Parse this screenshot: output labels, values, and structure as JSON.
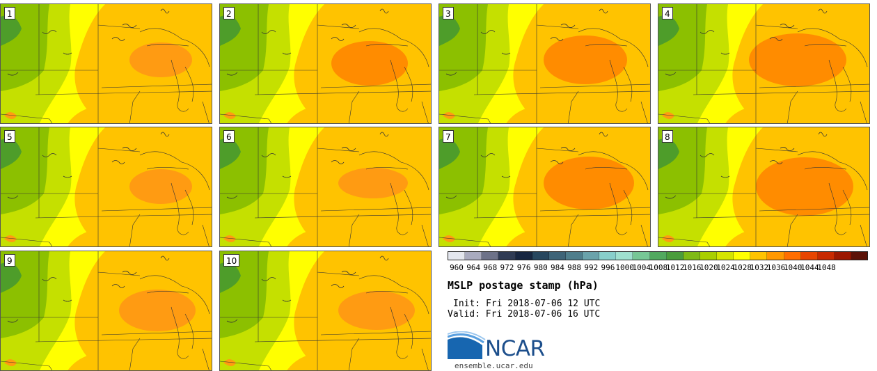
{
  "panels": [
    {
      "label": "1"
    },
    {
      "label": "2"
    },
    {
      "label": "3"
    },
    {
      "label": "4"
    },
    {
      "label": "5"
    },
    {
      "label": "6"
    },
    {
      "label": "7"
    },
    {
      "label": "8"
    },
    {
      "label": "9"
    },
    {
      "label": "10"
    }
  ],
  "colorbar": {
    "ticks": [
      "960",
      "964",
      "968",
      "972",
      "976",
      "980",
      "984",
      "988",
      "992",
      "996",
      "1000",
      "1004",
      "1008",
      "1012",
      "1016",
      "1020",
      "1024",
      "1028",
      "1032",
      "1036",
      "1040",
      "1044",
      "1048"
    ],
    "colors": [
      "#e3e6ee",
      "#a9abbf",
      "#6d7289",
      "#2f3b54",
      "#172641",
      "#27475f",
      "#3e6478",
      "#4f7e8c",
      "#6aa3ab",
      "#88cfcb",
      "#9fe0cf",
      "#77c796",
      "#52a95f",
      "#4b9d3d",
      "#7fba16",
      "#a9cf00",
      "#d5e500",
      "#ffff00",
      "#ffc300",
      "#ff9800",
      "#ff6e00",
      "#e84600",
      "#c82a00",
      "#9c1800",
      "#5c1308"
    ]
  },
  "title": "MSLP postage stamp (hPa)",
  "init_text": "Init: Fri 2018-07-06 12 UTC",
  "valid_text": "Valid: Fri 2018-07-06 16 UTC",
  "logo": {
    "name": "NCAR",
    "icon": "ncar-swoosh-logo"
  },
  "url": "ensemble.ucar.edu"
}
